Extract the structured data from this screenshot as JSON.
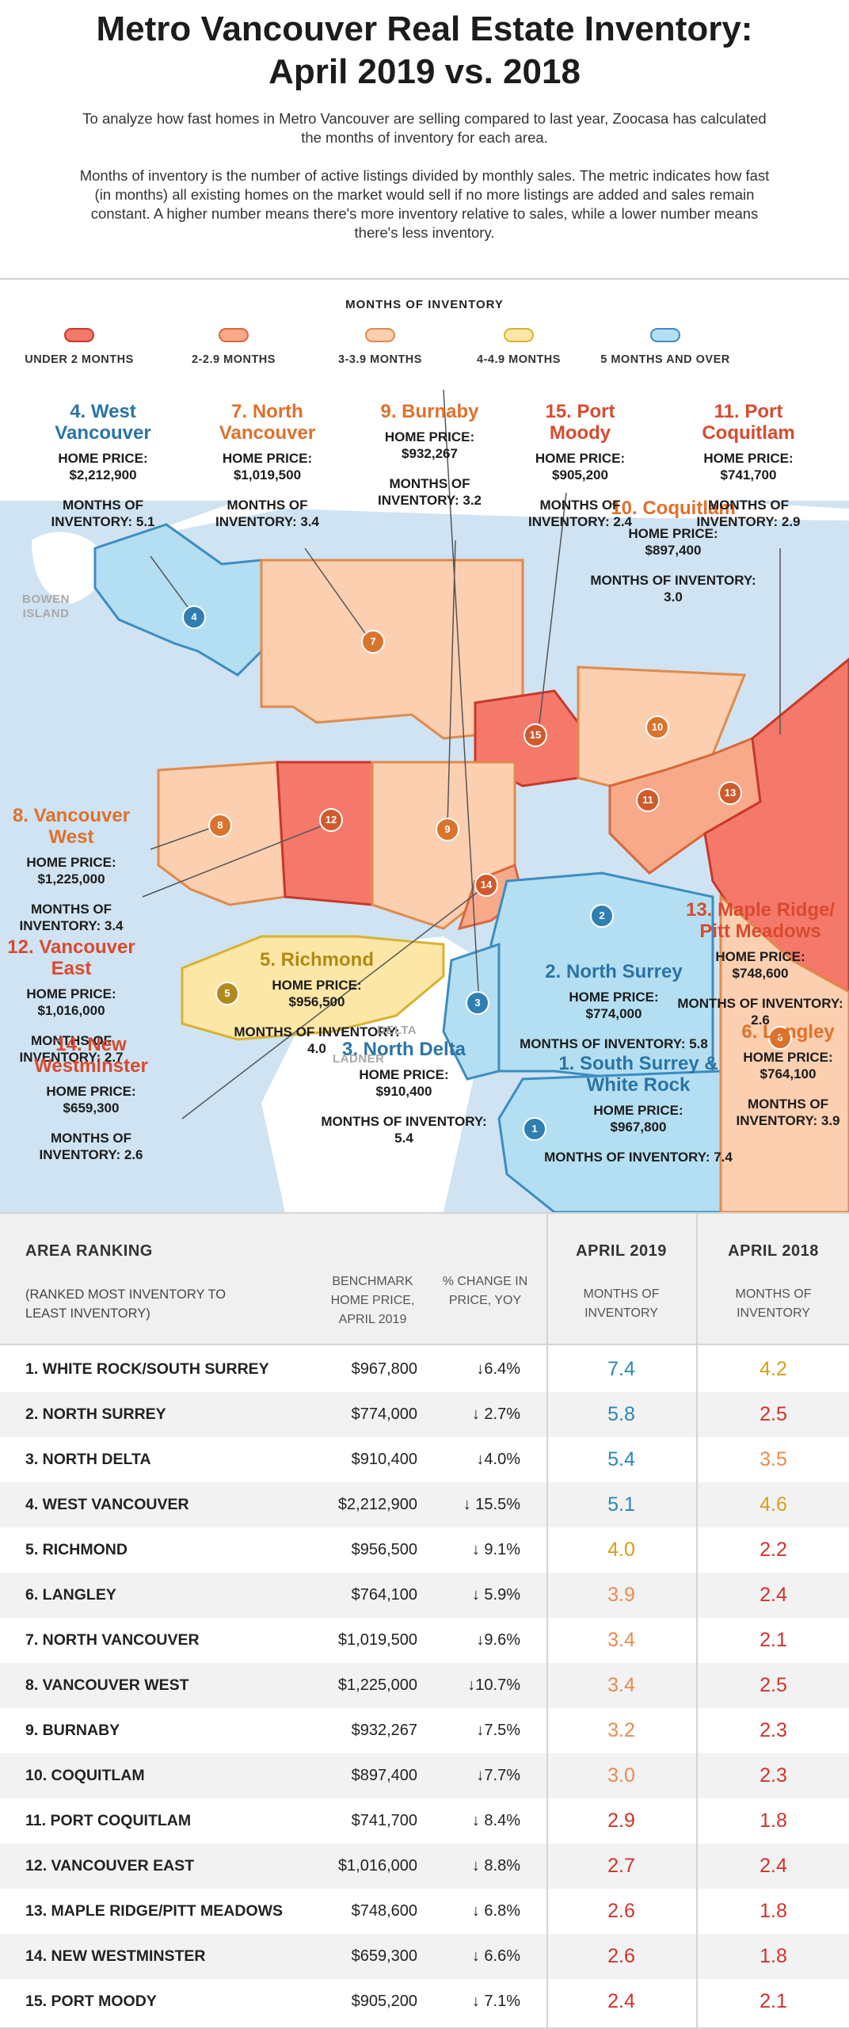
{
  "header": {
    "title_line1": "Metro Vancouver Real Estate Inventory:",
    "title_line2": "April 2019 vs. 2018",
    "intro_p1": "To analyze how fast homes in Metro Vancouver are selling compared to last year, Zoocasa has calculated the months of inventory for each area.",
    "intro_p2": "Months of inventory is the number of active listings divided by monthly sales. The metric indicates how fast (in months) all existing homes on the market would sell if no more listings are added and sales remain constant. A higher number means there's more inventory relative to sales, while a lower number means there's less inventory."
  },
  "legend": {
    "title": "MONTHS OF INVENTORY",
    "items": [
      {
        "label": "UNDER 2 MONTHS",
        "fill": "#f4796b",
        "stroke": "#c8382a"
      },
      {
        "label": "2-2.9 MONTHS",
        "fill": "#f7a98a",
        "stroke": "#d9673a"
      },
      {
        "label": "3-3.9 MONTHS",
        "fill": "#fbcfb0",
        "stroke": "#e08a4c"
      },
      {
        "label": "4-4.9 MONTHS",
        "fill": "#fde7a6",
        "stroke": "#d7b232"
      },
      {
        "label": "5 MONTHS AND OVER",
        "fill": "#b4dff2",
        "stroke": "#3d8cc0"
      }
    ]
  },
  "map": {
    "background_labels": {
      "bowen": "BOWEN\nISLAND",
      "delta": "DELTA",
      "ladner": "LADNER"
    },
    "keys": {
      "price": "HOME PRICE:",
      "moi": "MONTHS OF INVENTORY:"
    },
    "areas": [
      {
        "num": "1",
        "name": "1. South Surrey & White Rock",
        "price": "$967,800",
        "moi": "7.4"
      },
      {
        "num": "2",
        "name": "2. North Surrey",
        "price": "$774,000",
        "moi": "5.8"
      },
      {
        "num": "3",
        "name": "3. North Delta",
        "price": "$910,400",
        "moi": "5.4"
      },
      {
        "num": "4",
        "name": "4. West Vancouver",
        "price": "$2,212,900",
        "moi": "5.1"
      },
      {
        "num": "5",
        "name": "5. Richmond",
        "price": "$956,500",
        "moi": "4.0"
      },
      {
        "num": "6",
        "name": "6. Langley",
        "price": "$764,100",
        "moi": "3.9"
      },
      {
        "num": "7",
        "name": "7. North Vancouver",
        "price": "$1,019,500",
        "moi": "3.4"
      },
      {
        "num": "8",
        "name": "8. Vancouver West",
        "price": "$1,225,000",
        "moi": "3.4"
      },
      {
        "num": "9",
        "name": "9. Burnaby",
        "price": "$932,267",
        "moi": "3.2"
      },
      {
        "num": "10",
        "name": "10. Coquitlam",
        "price": "$897,400",
        "moi": "3.0"
      },
      {
        "num": "11",
        "name": "11. Port Coquitlam",
        "price": "$741,700",
        "moi": "2.9"
      },
      {
        "num": "12",
        "name": "12. Vancouver East",
        "price": "$1,016,000",
        "moi": "2.7"
      },
      {
        "num": "13",
        "name": "13. Maple Ridge/ Pitt Meadows",
        "price": "$748,600",
        "moi": "2.6"
      },
      {
        "num": "14",
        "name": "14. New Westminster",
        "price": "$659,300",
        "moi": "2.6"
      },
      {
        "num": "15",
        "name": "15. Port Moody",
        "price": "$905,200",
        "moi": "2.4"
      }
    ]
  },
  "table": {
    "head": {
      "area": "AREA RANKING",
      "area_sub": "(RANKED MOST INVENTORY TO LEAST INVENTORY)",
      "price": "BENCHMARK HOME PRICE, APRIL 2019",
      "change": "% CHANGE IN PRICE, YOY",
      "apr19": "APRIL 2019",
      "apr18": "APRIL 2018",
      "moi": "MONTHS OF INVENTORY"
    },
    "colors": {
      "blue": "#2b86b5",
      "gold": "#d4a017",
      "orange": "#e98b4f",
      "red": "#d2322a"
    },
    "rows": [
      {
        "area": "1. WHITE ROCK/SOUTH SURREY",
        "price": "$967,800",
        "change": "↓6.4%",
        "m19": "7.4",
        "c19": "blue",
        "m18": "4.2",
        "c18": "gold"
      },
      {
        "area": "2. NORTH SURREY",
        "price": "$774,000",
        "change": "↓ 2.7%",
        "m19": "5.8",
        "c19": "blue",
        "m18": "2.5",
        "c18": "red"
      },
      {
        "area": "3. NORTH DELTA",
        "price": "$910,400",
        "change": "↓4.0%",
        "m19": "5.4",
        "c19": "blue",
        "m18": "3.5",
        "c18": "orange"
      },
      {
        "area": "4. WEST VANCOUVER",
        "price": "$2,212,900",
        "change": "↓ 15.5%",
        "m19": "5.1",
        "c19": "blue",
        "m18": "4.6",
        "c18": "gold"
      },
      {
        "area": "5. RICHMOND",
        "price": "$956,500",
        "change": "↓ 9.1%",
        "m19": "4.0",
        "c19": "gold",
        "m18": "2.2",
        "c18": "red"
      },
      {
        "area": "6. LANGLEY",
        "price": "$764,100",
        "change": "↓ 5.9%",
        "m19": "3.9",
        "c19": "orange",
        "m18": "2.4",
        "c18": "red"
      },
      {
        "area": "7. NORTH VANCOUVER",
        "price": "$1,019,500",
        "change": "↓9.6%",
        "m19": "3.4",
        "c19": "orange",
        "m18": "2.1",
        "c18": "red"
      },
      {
        "area": "8. VANCOUVER WEST",
        "price": "$1,225,000",
        "change": "↓10.7%",
        "m19": "3.4",
        "c19": "orange",
        "m18": "2.5",
        "c18": "red"
      },
      {
        "area": "9. BURNABY",
        "price": "$932,267",
        "change": "↓7.5%",
        "m19": "3.2",
        "c19": "orange",
        "m18": "2.3",
        "c18": "red"
      },
      {
        "area": "10. COQUITLAM",
        "price": "$897,400",
        "change": "↓7.7%",
        "m19": "3.0",
        "c19": "orange",
        "m18": "2.3",
        "c18": "red"
      },
      {
        "area": "11. PORT COQUITLAM",
        "price": "$741,700",
        "change": "↓ 8.4%",
        "m19": "2.9",
        "c19": "red",
        "m18": "1.8",
        "c18": "red"
      },
      {
        "area": "12. VANCOUVER EAST",
        "price": "$1,016,000",
        "change": "↓ 8.8%",
        "m19": "2.7",
        "c19": "red",
        "m18": "2.4",
        "c18": "red"
      },
      {
        "area": "13. MAPLE RIDGE/PITT MEADOWS",
        "price": "$748,600",
        "change": "↓ 6.8%",
        "m19": "2.6",
        "c19": "red",
        "m18": "1.8",
        "c18": "red"
      },
      {
        "area": "14. NEW WESTMINSTER",
        "price": "$659,300",
        "change": "↓ 6.6%",
        "m19": "2.6",
        "c19": "red",
        "m18": "1.8",
        "c18": "red"
      },
      {
        "area": "15. PORT MOODY",
        "price": "$905,200",
        "change": "↓ 7.1%",
        "m19": "2.4",
        "c19": "red",
        "m18": "2.1",
        "c18": "red"
      }
    ]
  }
}
